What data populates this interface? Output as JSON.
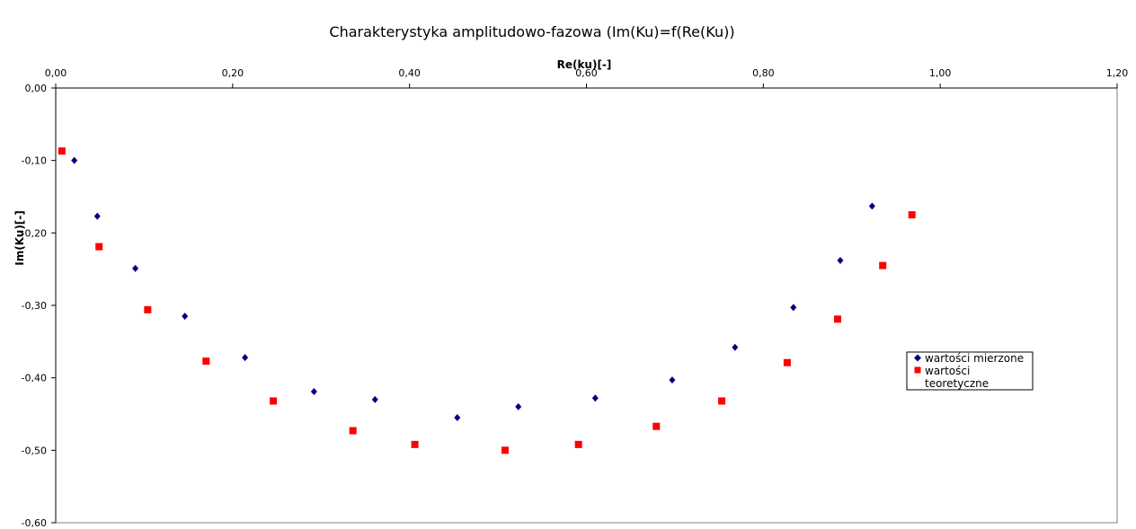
{
  "chart_data": {
    "type": "scatter",
    "title": "Charakterystyka amplitudowo-fazowa (Im(Ku)=f(Re(Ku))",
    "xlabel": "Re(ku)[-]",
    "ylabel": "Im(Ku)[-]",
    "xlim": [
      0,
      1.2
    ],
    "ylim": [
      -0.6,
      0
    ],
    "x_ticks": [
      "0,00",
      "0,20",
      "0,40",
      "0,60",
      "0,80",
      "1,00",
      "1,20"
    ],
    "y_ticks": [
      "0,00",
      "-0,10",
      "-0,20",
      "-0,30",
      "-0,40",
      "-0,50",
      "-0,60"
    ],
    "grid": false,
    "x_axis_position": "top",
    "legend_position": "right",
    "series": [
      {
        "name": "wartości mierzone",
        "marker": "diamond",
        "color": "#00007f",
        "x": [
          0.021,
          0.047,
          0.09,
          0.146,
          0.214,
          0.292,
          0.361,
          0.454,
          0.523,
          0.61,
          0.697,
          0.768,
          0.834,
          0.887,
          0.923
        ],
        "y": [
          -0.1,
          -0.177,
          -0.249,
          -0.315,
          -0.372,
          -0.419,
          -0.43,
          -0.455,
          -0.44,
          -0.428,
          -0.403,
          -0.358,
          -0.303,
          -0.238,
          -0.163
        ]
      },
      {
        "name": "wartości teoretyczne",
        "marker": "square",
        "color": "#ff0000",
        "x": [
          0.007,
          0.049,
          0.104,
          0.17,
          0.246,
          0.336,
          0.406,
          0.508,
          0.591,
          0.679,
          0.753,
          0.827,
          0.884,
          0.935,
          0.968
        ],
        "y": [
          -0.087,
          -0.219,
          -0.306,
          -0.377,
          -0.432,
          -0.473,
          -0.492,
          -0.5,
          -0.492,
          -0.467,
          -0.432,
          -0.379,
          -0.319,
          -0.245,
          -0.175
        ]
      }
    ]
  }
}
